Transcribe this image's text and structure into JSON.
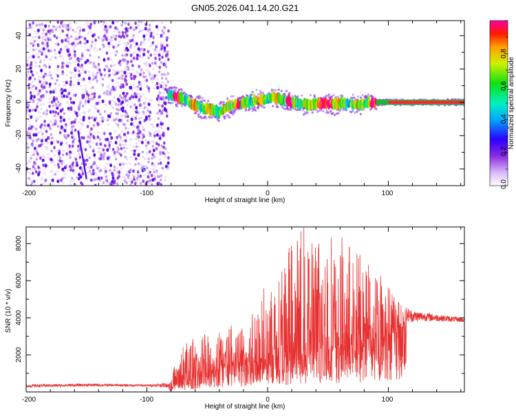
{
  "title": "GN05.2026.041.14.20.G21",
  "chart_data": [
    {
      "id": "spectrogram",
      "type": "heatmap",
      "xlabel": "Height of straight line (km)",
      "ylabel": "Frequency (Hz)",
      "xlim": [
        -200,
        163
      ],
      "ylim": [
        -50,
        49
      ],
      "xticks": [
        -200,
        -100,
        0,
        100
      ],
      "yticks": [
        -40,
        -20,
        0,
        20,
        40
      ],
      "colorbar": {
        "label": "Normalized spectral amplitude",
        "range": [
          0.0,
          1.0
        ],
        "ticks": [
          0.0,
          0.2,
          0.4,
          0.6,
          0.8
        ],
        "tick_labels": [
          "0.0",
          "0.2",
          "0.4",
          "0.6",
          "0.8"
        ],
        "colormap": "rainbow"
      },
      "noise_region_x": [
        -200,
        -82
      ],
      "streak": {
        "x": [
          -157,
          -150
        ],
        "y": [
          -17,
          -46
        ]
      },
      "ridge": {
        "x": [
          -82,
          -75,
          -70,
          -65,
          -60,
          -55,
          -50,
          -45,
          -40,
          -35,
          -30,
          -20,
          -10,
          0,
          5,
          10,
          15,
          20,
          30,
          40,
          50,
          60,
          70,
          80,
          90,
          100,
          110,
          120,
          130,
          140,
          150,
          163
        ],
        "y": [
          4,
          3,
          2,
          0,
          -2,
          -3,
          -4,
          -5,
          -6,
          -4,
          -2,
          0,
          1,
          2,
          3,
          2,
          1,
          0,
          -1,
          -1,
          -1,
          -1,
          -1,
          -1,
          0,
          0,
          0,
          0,
          0,
          0,
          0,
          0
        ]
      }
    },
    {
      "id": "snr",
      "type": "line",
      "xlabel": "Height of straight line (km)",
      "ylabel": "SNR (10 * v/v)",
      "xlim": [
        -200,
        163
      ],
      "ylim": [
        0,
        8900
      ],
      "xticks": [
        -200,
        -100,
        0,
        100
      ],
      "yticks": [
        2000,
        4000,
        6000,
        8000
      ],
      "color": "#e83030",
      "series": [
        {
          "name": "SNR",
          "envelope": {
            "x": [
              -200,
              -150,
              -100,
              -82,
              -75,
              -70,
              -60,
              -50,
              -40,
              -30,
              -20,
              -10,
              0,
              10,
              20,
              30,
              40,
              50,
              60,
              70,
              80,
              90,
              100,
              110,
              115,
              120,
              130,
              140,
              150,
              163
            ],
            "base": [
              250,
              300,
              300,
              250,
              400,
              500,
              800,
              1000,
              1200,
              1300,
              1400,
              1600,
              1800,
              1900,
              2000,
              2000,
              2100,
              2200,
              2300,
              2400,
              2600,
              2800,
              3000,
              3300,
              3500,
              3600,
              3700,
              3700,
              3700,
              3700
            ],
            "peak": [
              400,
              450,
              400,
              500,
              1800,
              2600,
              3000,
              3200,
              3400,
              3600,
              3800,
              4800,
              6000,
              7400,
              8200,
              8900,
              8700,
              8600,
              8400,
              8000,
              7400,
              6800,
              6000,
              5000,
              4600,
              4400,
              4300,
              4200,
              4100,
              4000
            ]
          }
        }
      ]
    }
  ]
}
